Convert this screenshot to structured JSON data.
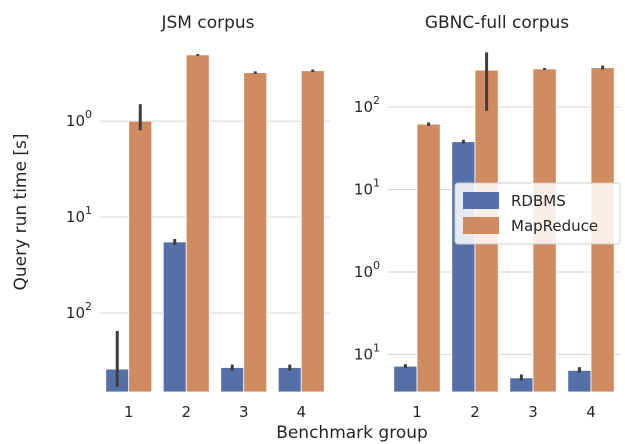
{
  "chart_data": [
    {
      "type": "bar",
      "title": "JSM corpus",
      "ylabel": "Query run time [s]",
      "yscale": "log",
      "ylim": [
        0.0015,
        7.0
      ],
      "yticks": [
        {
          "value": 1,
          "base": "10",
          "exp": "0"
        },
        {
          "value": 0.1,
          "base": "10",
          "exp": "1"
        },
        {
          "value": 0.01,
          "base": "10",
          "exp": "2"
        }
      ],
      "categories": [
        "1",
        "2",
        "3",
        "4"
      ],
      "series": [
        {
          "name": "RDBMS",
          "color": "#5470a7",
          "values": [
            0.0026,
            0.055,
            0.0027,
            0.0027
          ],
          "err_low": [
            0.0017,
            0.051,
            0.0025,
            0.0025
          ],
          "err_high": [
            0.0065,
            0.059,
            0.0029,
            0.0029
          ]
        },
        {
          "name": "MapReduce",
          "color": "#d08a5f",
          "values": [
            1.0,
            4.9,
            3.2,
            3.35
          ],
          "err_low": [
            0.8,
            4.8,
            3.1,
            3.25
          ],
          "err_high": [
            1.5,
            5.0,
            3.3,
            3.45
          ]
        }
      ],
      "grid": true
    },
    {
      "type": "bar",
      "title": "GBNC-full corpus",
      "ylabel": "",
      "yscale": "log",
      "ylim": [
        0.035,
        650
      ],
      "yticks": [
        {
          "value": 100,
          "base": "10",
          "exp": "2"
        },
        {
          "value": 10,
          "base": "10",
          "exp": "1"
        },
        {
          "value": 1,
          "base": "10",
          "exp": "0"
        },
        {
          "value": 0.1,
          "base": "10",
          "exp": "1"
        }
      ],
      "categories": [
        "1",
        "2",
        "3",
        "4"
      ],
      "series": [
        {
          "name": "RDBMS",
          "color": "#5470a7",
          "values": [
            0.072,
            38,
            0.052,
            0.064
          ],
          "err_low": [
            0.068,
            36,
            0.048,
            0.06
          ],
          "err_high": [
            0.076,
            40,
            0.057,
            0.07
          ]
        },
        {
          "name": "MapReduce",
          "color": "#d08a5f",
          "values": [
            62,
            280,
            290,
            300
          ],
          "err_low": [
            59,
            90,
            282,
            285
          ],
          "err_high": [
            65,
            460,
            298,
            318
          ]
        }
      ],
      "grid": true,
      "legend": {
        "position": "right",
        "entries": [
          "RDBMS",
          "MapReduce"
        ]
      }
    }
  ],
  "xlabel": "Benchmark group"
}
